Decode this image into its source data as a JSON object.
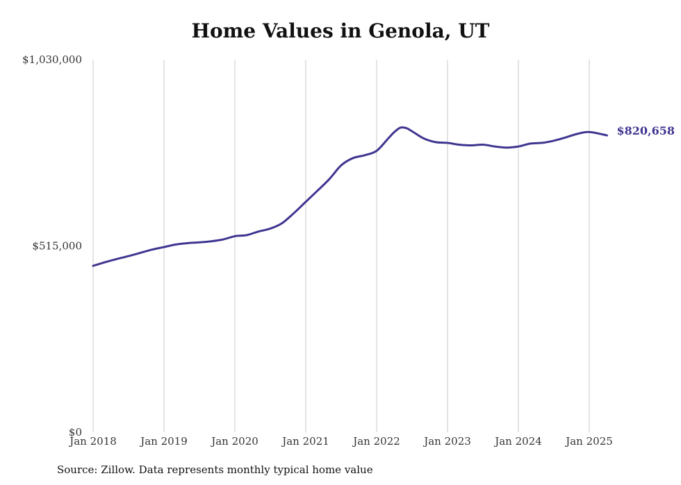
{
  "colors": {
    "series": "#3f3590",
    "grid": "#c8c8c8",
    "text": "#333333"
  },
  "chart_data": {
    "type": "line",
    "title": "Home Values in Genola, UT",
    "source": "Source: Zillow. Data represents monthly typical home value",
    "ylim": [
      0,
      1030000
    ],
    "y_ticks": [
      0,
      515000,
      1030000
    ],
    "y_tick_labels": [
      "$0",
      "$515,000",
      "$1,030,000"
    ],
    "x_range": [
      "2018-01",
      "2025-04"
    ],
    "x_ticks": [
      "2018-01",
      "2019-01",
      "2020-01",
      "2021-01",
      "2022-01",
      "2023-01",
      "2024-01",
      "2025-01"
    ],
    "x_tick_labels": [
      "Jan 2018",
      "Jan 2019",
      "Jan 2020",
      "Jan 2021",
      "Jan 2022",
      "Jan 2023",
      "Jan 2024",
      "Jan 2025"
    ],
    "grid": "vertical",
    "end_label": "$820,658",
    "series": [
      {
        "x": [
          "2018-01",
          "2018-03",
          "2018-05",
          "2018-07",
          "2018-09",
          "2018-11",
          "2019-01",
          "2019-03",
          "2019-05",
          "2019-07",
          "2019-09",
          "2019-11",
          "2020-01",
          "2020-03",
          "2020-05",
          "2020-07",
          "2020-09",
          "2020-11",
          "2021-01",
          "2021-03",
          "2021-05",
          "2021-07",
          "2021-09",
          "2021-11",
          "2022-01",
          "2022-03",
          "2022-04",
          "2022-05",
          "2022-06",
          "2022-07",
          "2022-09",
          "2022-11",
          "2023-01",
          "2023-03",
          "2023-05",
          "2023-07",
          "2023-09",
          "2023-11",
          "2024-01",
          "2024-03",
          "2024-05",
          "2024-07",
          "2024-09",
          "2024-11",
          "2025-01",
          "2025-04"
        ],
        "values": [
          460000,
          470000,
          479000,
          487000,
          496000,
          505000,
          512000,
          519000,
          523000,
          525000,
          528000,
          533000,
          542000,
          545000,
          555000,
          563000,
          578000,
          606000,
          637000,
          668000,
          700000,
          738000,
          758000,
          766000,
          778000,
          813000,
          830000,
          842000,
          841000,
          832000,
          812000,
          802000,
          800000,
          795000,
          793000,
          795000,
          790000,
          787000,
          790000,
          798000,
          800000,
          806000,
          815000,
          825000,
          830000,
          820658
        ]
      }
    ]
  }
}
